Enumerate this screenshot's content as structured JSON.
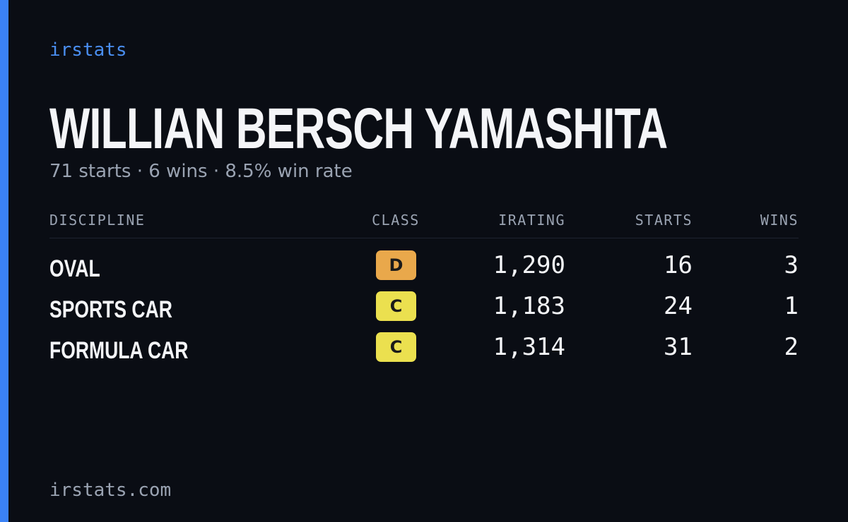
{
  "brand": "irstats",
  "driver": {
    "name": "WILLIAN BERSCH YAMASHITA",
    "summary": "71 starts · 6 wins · 8.5% win rate"
  },
  "table": {
    "headers": [
      "DISCIPLINE",
      "CLASS",
      "IRATING",
      "STARTS",
      "WINS"
    ],
    "rows": [
      {
        "discipline": "OVAL",
        "class": "D",
        "class_color": "#e9a84b",
        "irating": "1,290",
        "starts": "16",
        "wins": "3"
      },
      {
        "discipline": "SPORTS CAR",
        "class": "C",
        "class_color": "#ebe04f",
        "irating": "1,183",
        "starts": "24",
        "wins": "1"
      },
      {
        "discipline": "FORMULA CAR",
        "class": "C",
        "class_color": "#ebe04f",
        "irating": "1,314",
        "starts": "31",
        "wins": "2"
      }
    ]
  },
  "footer": "irstats.com"
}
